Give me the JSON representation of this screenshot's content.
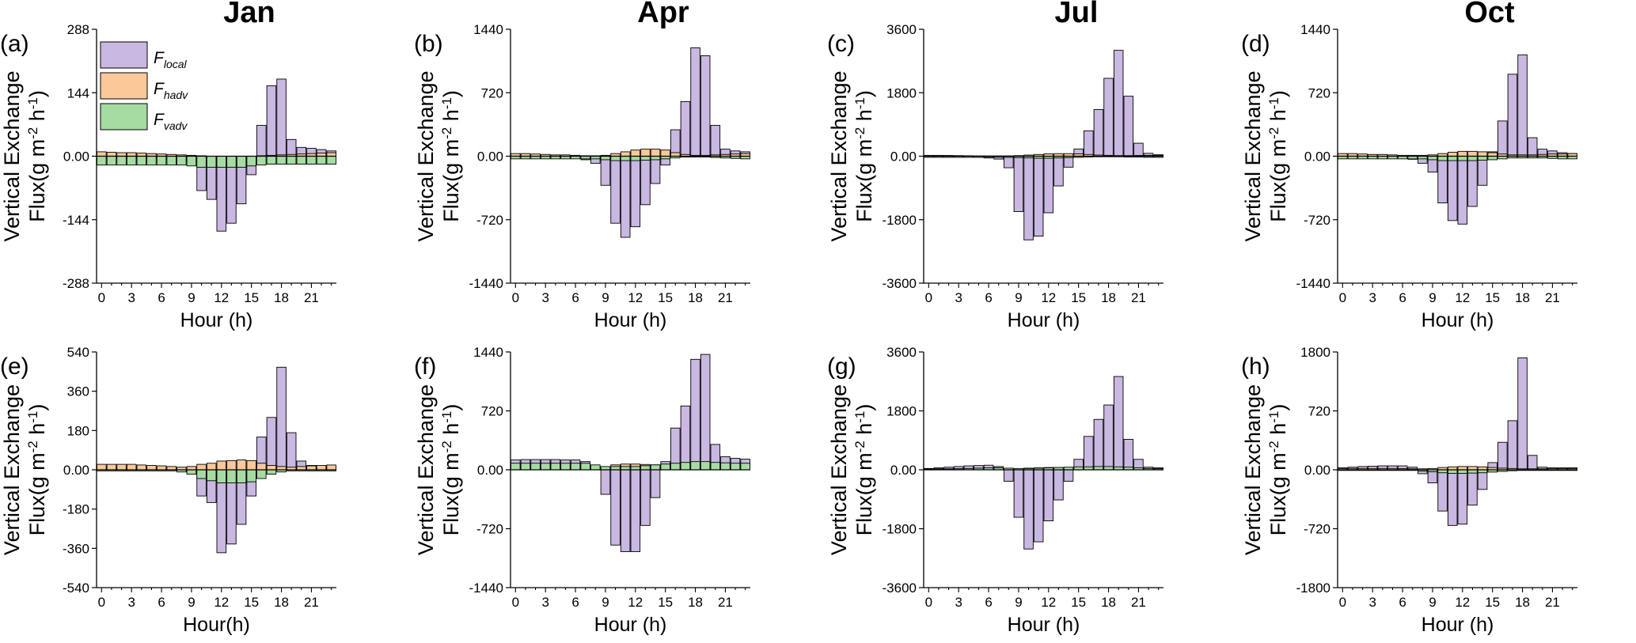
{
  "months": [
    "Jan",
    "Apr",
    "Jul",
    "Oct"
  ],
  "legend": [
    {
      "symbol": "F",
      "sub": "local",
      "color": "#c9b8e1"
    },
    {
      "symbol": "F",
      "sub": "hadv",
      "color": "#fbc89a"
    },
    {
      "symbol": "F",
      "sub": "vadv",
      "color": "#a5dca1"
    }
  ],
  "ylabel_line1": "Vertical Exchange",
  "ylabel_line2": "Flux(g m",
  "ylabel_sup1": "-2",
  "ylabel_mid": " h",
  "ylabel_sup2": "-1",
  "ylabel_end": ")",
  "xticks": [
    "0",
    "3",
    "6",
    "9",
    "12",
    "15",
    "18",
    "21"
  ],
  "chart_data": [
    {
      "type": "bar",
      "panel": "(a)",
      "month": "Jan",
      "xlabel": "Hour (h)",
      "yticks": [
        "288",
        "144",
        "0.00",
        "-144",
        "-288"
      ],
      "ylim": [
        -288,
        288
      ],
      "x": [
        0,
        1,
        2,
        3,
        4,
        5,
        6,
        7,
        8,
        9,
        10,
        11,
        12,
        13,
        14,
        15,
        16,
        17,
        18,
        19,
        20,
        21,
        22,
        23
      ],
      "series": [
        {
          "name": "F_local",
          "values": [
            -5,
            -5,
            -5,
            -5,
            -5,
            -5,
            -6,
            -7,
            -8,
            -12,
            -78,
            -98,
            -170,
            -152,
            -108,
            -42,
            70,
            160,
            175,
            38,
            20,
            18,
            15,
            12
          ]
        },
        {
          "name": "F_hadv",
          "values": [
            10,
            9,
            8,
            8,
            7,
            6,
            5,
            4,
            3,
            2,
            1,
            0,
            -1,
            -2,
            -2,
            -1,
            1,
            2,
            3,
            4,
            5,
            6,
            7,
            8
          ]
        },
        {
          "name": "F_vadv",
          "values": [
            -20,
            -20,
            -20,
            -20,
            -20,
            -20,
            -20,
            -20,
            -20,
            -22,
            -25,
            -25,
            -25,
            -25,
            -25,
            -22,
            -20,
            -18,
            -18,
            -18,
            -18,
            -18,
            -18,
            -18
          ]
        }
      ]
    },
    {
      "type": "bar",
      "panel": "(b)",
      "month": "Apr",
      "xlabel": "Hour (h)",
      "yticks": [
        "1440",
        "720",
        "0.00",
        "-720",
        "-1440"
      ],
      "ylim": [
        -1440,
        1440
      ],
      "x": [
        0,
        1,
        2,
        3,
        4,
        5,
        6,
        7,
        8,
        9,
        10,
        11,
        12,
        13,
        14,
        15,
        16,
        17,
        18,
        19,
        20,
        21,
        22,
        23
      ],
      "series": [
        {
          "name": "F_local",
          "values": [
            10,
            8,
            5,
            0,
            -8,
            -15,
            -25,
            -40,
            -80,
            -330,
            -760,
            -920,
            -800,
            -550,
            -310,
            -100,
            300,
            620,
            1230,
            1140,
            350,
            80,
            60,
            50
          ]
        },
        {
          "name": "F_hadv",
          "values": [
            30,
            30,
            25,
            20,
            15,
            15,
            10,
            5,
            5,
            10,
            30,
            50,
            70,
            80,
            80,
            70,
            40,
            20,
            10,
            10,
            15,
            20,
            25,
            30
          ]
        },
        {
          "name": "F_vadv",
          "values": [
            -30,
            -30,
            -30,
            -30,
            -30,
            -30,
            -30,
            -30,
            -30,
            -40,
            -50,
            -50,
            -50,
            -45,
            -40,
            -30,
            -20,
            -10,
            -10,
            -10,
            -15,
            -20,
            -25,
            -30
          ]
        }
      ]
    },
    {
      "type": "bar",
      "panel": "(c)",
      "month": "Jul",
      "xlabel": "Hour (h)",
      "yticks": [
        "3600",
        "1800",
        "0.00",
        "-1800",
        "-3600"
      ],
      "ylim": [
        -4400,
        4400
      ],
      "x": [
        0,
        1,
        2,
        3,
        4,
        5,
        6,
        7,
        8,
        9,
        10,
        11,
        12,
        13,
        14,
        15,
        16,
        17,
        18,
        19,
        20,
        21,
        22,
        23
      ],
      "series": [
        {
          "name": "F_local",
          "values": [
            20,
            20,
            10,
            0,
            -20,
            -40,
            -60,
            -100,
            -400,
            -1920,
            -2900,
            -2770,
            -1960,
            -1030,
            -380,
            250,
            880,
            1620,
            2700,
            3670,
            2080,
            450,
            100,
            50
          ]
        },
        {
          "name": "F_hadv",
          "values": [
            30,
            30,
            25,
            20,
            15,
            10,
            10,
            10,
            10,
            20,
            40,
            60,
            80,
            90,
            90,
            80,
            60,
            40,
            30,
            20,
            20,
            25,
            30,
            30
          ]
        },
        {
          "name": "F_vadv",
          "values": [
            -40,
            -40,
            -40,
            -40,
            -40,
            -40,
            -40,
            -40,
            -40,
            -50,
            -60,
            -70,
            -70,
            -60,
            -50,
            -40,
            -30,
            -20,
            -20,
            -20,
            -30,
            -30,
            -40,
            -40
          ]
        }
      ]
    },
    {
      "type": "bar",
      "panel": "(d)",
      "month": "Oct",
      "xlabel": "Hour (h)",
      "yticks": [
        "1440",
        "720",
        "0.00",
        "-720",
        "-1440"
      ],
      "ylim": [
        -1440,
        1440
      ],
      "x": [
        0,
        1,
        2,
        3,
        4,
        5,
        6,
        7,
        8,
        9,
        10,
        11,
        12,
        13,
        14,
        15,
        16,
        17,
        18,
        19,
        20,
        21,
        22,
        23
      ],
      "series": [
        {
          "name": "F_local",
          "values": [
            5,
            5,
            0,
            -5,
            -10,
            -15,
            -25,
            -35,
            -80,
            -180,
            -530,
            -730,
            -770,
            -570,
            -330,
            50,
            400,
            930,
            1150,
            210,
            80,
            60,
            40,
            30
          ]
        },
        {
          "name": "F_hadv",
          "values": [
            30,
            30,
            25,
            20,
            20,
            15,
            10,
            10,
            10,
            15,
            30,
            45,
            55,
            55,
            50,
            40,
            25,
            15,
            15,
            15,
            20,
            25,
            25,
            30
          ]
        },
        {
          "name": "F_vadv",
          "values": [
            -30,
            -30,
            -30,
            -30,
            -30,
            -30,
            -30,
            -30,
            -30,
            -40,
            -50,
            -50,
            -50,
            -50,
            -45,
            -40,
            -30,
            -20,
            -20,
            -20,
            -20,
            -25,
            -30,
            -30
          ]
        }
      ]
    },
    {
      "type": "bar",
      "panel": "(e)",
      "month": "Jan",
      "xlabel": "Hour(h)",
      "yticks": [
        "540",
        "360",
        "180",
        "0.00",
        "-180",
        "-360",
        "-540"
      ],
      "ylim": [
        -540,
        540
      ],
      "x": [
        0,
        1,
        2,
        3,
        4,
        5,
        6,
        7,
        8,
        9,
        10,
        11,
        12,
        13,
        14,
        15,
        16,
        17,
        18,
        19,
        20,
        21,
        22,
        23
      ],
      "series": [
        {
          "name": "F_local",
          "values": [
            10,
            10,
            10,
            10,
            10,
            10,
            8,
            5,
            -5,
            -15,
            -120,
            -150,
            -380,
            -340,
            -250,
            -120,
            150,
            240,
            470,
            170,
            40,
            20,
            15,
            15
          ]
        },
        {
          "name": "F_hadv",
          "values": [
            25,
            25,
            25,
            25,
            22,
            20,
            18,
            15,
            12,
            15,
            25,
            30,
            40,
            42,
            45,
            42,
            30,
            20,
            15,
            12,
            15,
            18,
            20,
            22
          ]
        },
        {
          "name": "F_vadv",
          "values": [
            -5,
            -5,
            -5,
            -5,
            -5,
            -5,
            -5,
            -5,
            -10,
            -20,
            -40,
            -50,
            -60,
            -60,
            -60,
            -55,
            -40,
            -20,
            -10,
            -5,
            -5,
            -5,
            -5,
            -5
          ]
        }
      ]
    },
    {
      "type": "bar",
      "panel": "(f)",
      "month": "Apr",
      "xlabel": "Hour (h)",
      "yticks": [
        "1440",
        "720",
        "0.00",
        "-720",
        "-1440"
      ],
      "ylim": [
        -1440,
        1440
      ],
      "x": [
        0,
        1,
        2,
        3,
        4,
        5,
        6,
        7,
        8,
        9,
        10,
        11,
        12,
        13,
        14,
        15,
        16,
        17,
        18,
        19,
        20,
        21,
        22,
        23
      ],
      "series": [
        {
          "name": "F_local",
          "values": [
            120,
            125,
            125,
            125,
            125,
            120,
            120,
            100,
            30,
            -300,
            -920,
            -1000,
            -1000,
            -680,
            -340,
            100,
            510,
            780,
            1350,
            1410,
            310,
            160,
            140,
            130
          ]
        },
        {
          "name": "F_hadv",
          "values": [
            40,
            40,
            40,
            40,
            35,
            35,
            30,
            25,
            25,
            35,
            60,
            70,
            70,
            65,
            60,
            50,
            35,
            25,
            20,
            20,
            25,
            30,
            35,
            40
          ]
        },
        {
          "name": "F_vadv",
          "values": [
            80,
            80,
            80,
            80,
            80,
            80,
            80,
            80,
            60,
            40,
            40,
            40,
            40,
            50,
            60,
            70,
            80,
            90,
            100,
            100,
            90,
            85,
            80,
            80
          ]
        }
      ]
    },
    {
      "type": "bar",
      "panel": "(g)",
      "month": "Jul",
      "xlabel": "Hour (h)",
      "yticks": [
        "3600",
        "1800",
        "0.00",
        "-1800",
        "-3600"
      ],
      "ylim": [
        -3600,
        3600
      ],
      "x": [
        0,
        1,
        2,
        3,
        4,
        5,
        6,
        7,
        8,
        9,
        10,
        11,
        12,
        13,
        14,
        15,
        16,
        17,
        18,
        19,
        20,
        21,
        22,
        23
      ],
      "series": [
        {
          "name": "F_local",
          "values": [
            40,
            60,
            80,
            100,
            120,
            130,
            140,
            100,
            -350,
            -1450,
            -2420,
            -2200,
            -1560,
            -920,
            -350,
            320,
            1020,
            1540,
            1980,
            2850,
            930,
            320,
            80,
            60
          ]
        },
        {
          "name": "F_hadv",
          "values": [
            30,
            30,
            30,
            30,
            30,
            30,
            25,
            20,
            20,
            30,
            50,
            60,
            70,
            70,
            65,
            55,
            40,
            30,
            25,
            25,
            25,
            30,
            30,
            30
          ]
        },
        {
          "name": "F_vadv",
          "values": [
            20,
            20,
            25,
            30,
            40,
            50,
            60,
            60,
            50,
            40,
            40,
            50,
            60,
            70,
            80,
            90,
            90,
            100,
            100,
            90,
            80,
            60,
            40,
            30
          ]
        }
      ]
    },
    {
      "type": "bar",
      "panel": "(h)",
      "month": "Oct",
      "xlabel": "Hour (h)",
      "yticks": [
        "1800",
        "720",
        "0.00",
        "-720",
        "-1800"
      ],
      "ylim": [
        -1800,
        1800
      ],
      "x": [
        0,
        1,
        2,
        3,
        4,
        5,
        6,
        7,
        8,
        9,
        10,
        11,
        12,
        13,
        14,
        15,
        16,
        17,
        18,
        19,
        20,
        21,
        22,
        23
      ],
      "series": [
        {
          "name": "F_local",
          "values": [
            30,
            40,
            50,
            55,
            60,
            60,
            60,
            40,
            -60,
            -200,
            -630,
            -850,
            -830,
            -540,
            -300,
            110,
            420,
            750,
            1710,
            220,
            40,
            30,
            30,
            30
          ]
        },
        {
          "name": "F_hadv",
          "values": [
            20,
            20,
            20,
            20,
            20,
            20,
            18,
            15,
            15,
            20,
            35,
            45,
            50,
            50,
            45,
            35,
            25,
            20,
            15,
            15,
            15,
            20,
            20,
            20
          ]
        },
        {
          "name": "F_vadv",
          "values": [
            -10,
            -10,
            -10,
            -10,
            -10,
            -10,
            -10,
            -10,
            -20,
            -30,
            -45,
            -55,
            -55,
            -50,
            -45,
            -35,
            -25,
            -15,
            -10,
            -10,
            -10,
            -10,
            -10,
            -10
          ]
        }
      ]
    }
  ]
}
